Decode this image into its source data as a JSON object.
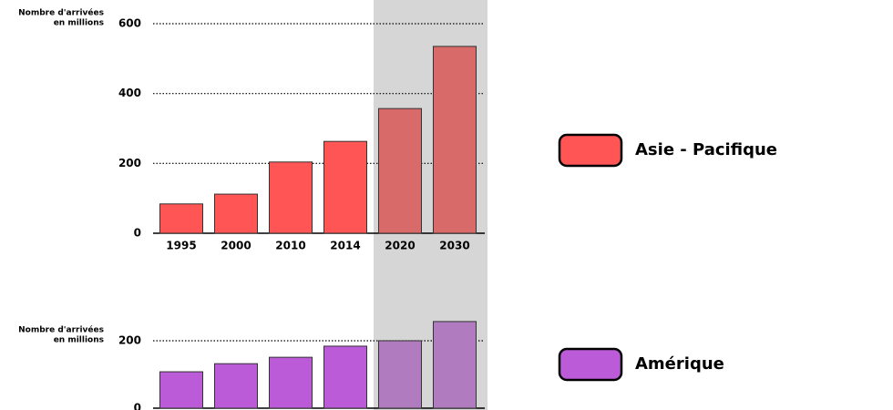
{
  "chart_data": [
    {
      "type": "bar",
      "y_label": [
        "Nombre d'arrivées",
        "en millions"
      ],
      "categories": [
        "1995",
        "2000",
        "2010",
        "2014",
        "2020",
        "2030"
      ],
      "series": [
        {
          "name": "Asie - Pacifique",
          "colors": [
            "#ff5555",
            "#ff5555",
            "#ff5555",
            "#ff5555",
            "#d86a6a",
            "#d86a6a"
          ],
          "values": [
            84,
            112,
            204,
            263,
            357,
            535
          ]
        }
      ],
      "ylim": [
        0,
        600
      ],
      "yticks": [
        0,
        200,
        400,
        600
      ],
      "grid": true
    },
    {
      "type": "bar",
      "y_label": [
        "Nombre d'arrivées",
        "en millions"
      ],
      "categories": [
        null,
        null,
        null,
        null,
        null,
        null
      ],
      "series": [
        {
          "name": "Amérique",
          "colors": [
            "#bb5bd8",
            "#bb5bd8",
            "#bb5bd8",
            "#bb5bd8",
            "#b07bbf",
            "#b07bbf"
          ],
          "values": [
            108,
            132,
            151,
            184,
            200,
            257
          ]
        }
      ],
      "ylim": [
        0,
        300
      ],
      "yticks": [
        0,
        200
      ],
      "grid": true
    }
  ]
}
